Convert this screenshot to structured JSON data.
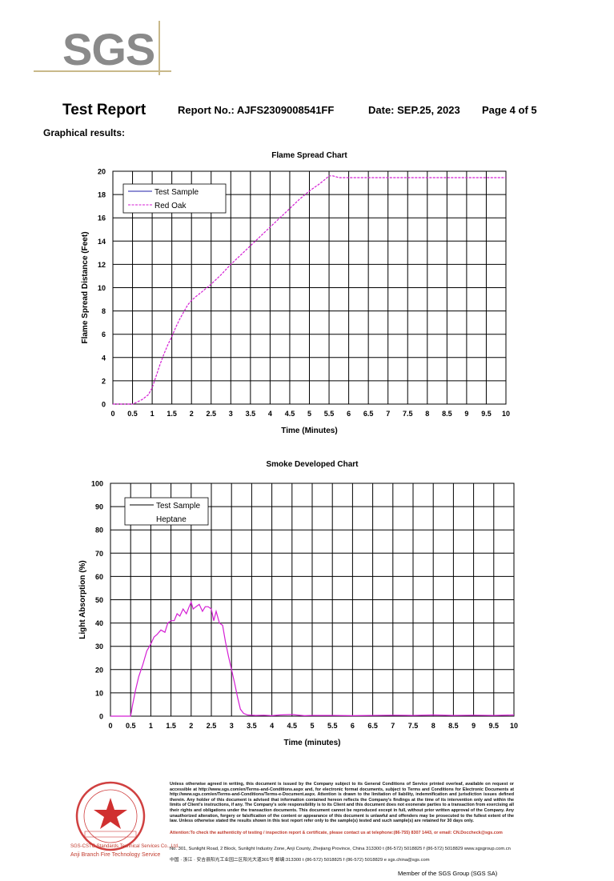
{
  "logo": {
    "text": "SGS"
  },
  "header": {
    "title": "Test Report",
    "report_no": "Report No.: AJFS2309008541FF",
    "date": "Date: SEP.25, 2023",
    "page": "Page 4 of 5"
  },
  "section_heading": "Graphical results:",
  "chart_data": [
    {
      "type": "line",
      "title": "Flame Spread Chart",
      "xlabel": "Time (Minutes)",
      "ylabel": "Flame Spread Distance (Feet)",
      "xlim": [
        0,
        10
      ],
      "ylim": [
        0,
        20
      ],
      "x_ticks": [
        "0",
        "0.5",
        "1",
        "1.5",
        "2",
        "2.5",
        "3",
        "3.5",
        "4",
        "4.5",
        "5",
        "5.5",
        "6",
        "6.5",
        "7",
        "7.5",
        "8",
        "8.5",
        "9",
        "9.5",
        "10"
      ],
      "y_ticks": [
        "0",
        "2",
        "4",
        "6",
        "8",
        "10",
        "12",
        "14",
        "16",
        "18",
        "20"
      ],
      "grid": true,
      "legend_position": "top-left",
      "legend": [
        "Test Sample",
        "Red Oak"
      ],
      "series": [
        {
          "name": "Test Sample",
          "color": "#1f1fa8",
          "style": "solid",
          "x": [],
          "y": []
        },
        {
          "name": "Red Oak",
          "color": "#d41ed4",
          "style": "dashed",
          "x": [
            0,
            0.5,
            0.6,
            0.75,
            0.9,
            1.0,
            1.1,
            1.2,
            1.3,
            1.4,
            1.5,
            1.6,
            1.7,
            1.8,
            1.9,
            2.0,
            2.1,
            2.25,
            2.5,
            2.75,
            3.0,
            3.25,
            3.5,
            3.75,
            4.0,
            4.25,
            4.5,
            4.75,
            5.0,
            5.25,
            5.4,
            5.5,
            5.6,
            5.75,
            6.0,
            7.0,
            8.0,
            9.0,
            10.0
          ],
          "y": [
            0,
            0,
            0.15,
            0.4,
            0.8,
            1.4,
            2.4,
            3.4,
            4.3,
            5.1,
            5.8,
            6.6,
            7.3,
            7.9,
            8.5,
            8.9,
            9.2,
            9.6,
            10.3,
            11.1,
            12.0,
            12.8,
            13.6,
            14.4,
            15.2,
            16.0,
            16.8,
            17.6,
            18.3,
            18.9,
            19.3,
            19.6,
            19.6,
            19.45,
            19.45,
            19.45,
            19.45,
            19.45,
            19.45
          ]
        }
      ]
    },
    {
      "type": "line",
      "title": "Smoke Developed Chart",
      "xlabel": "Time (minutes)",
      "ylabel": "Light Absorption (%)",
      "xlim": [
        0,
        10
      ],
      "ylim": [
        0,
        100
      ],
      "x_ticks": [
        "0",
        "0.5",
        "1",
        "1.5",
        "2",
        "2.5",
        "3",
        "3.5",
        "4",
        "4.5",
        "5",
        "5.5",
        "6",
        "6.5",
        "7",
        "7.5",
        "8",
        "8.5",
        "9",
        "9.5",
        "10"
      ],
      "y_ticks": [
        "0",
        "10",
        "20",
        "30",
        "40",
        "50",
        "60",
        "70",
        "80",
        "90",
        "100"
      ],
      "grid": true,
      "legend_position": "top-left",
      "legend": [
        "Test Sample",
        "Heptane"
      ],
      "series": [
        {
          "name": "Test Sample",
          "color": "#000000",
          "style": "solid",
          "x": [],
          "y": []
        },
        {
          "name": "Heptane",
          "color": "#d41ed4",
          "style": "solid",
          "x": [
            0,
            0.5,
            0.55,
            0.62,
            0.7,
            0.8,
            0.9,
            1.0,
            1.08,
            1.15,
            1.25,
            1.35,
            1.42,
            1.5,
            1.58,
            1.65,
            1.72,
            1.8,
            1.88,
            1.95,
            2.0,
            2.05,
            2.12,
            2.2,
            2.28,
            2.35,
            2.42,
            2.5,
            2.56,
            2.62,
            2.7,
            2.78,
            2.85,
            2.92,
            3.0,
            3.08,
            3.15,
            3.22,
            3.3,
            3.4,
            3.6,
            3.8,
            4.0,
            4.2,
            4.5,
            4.8,
            5.0,
            5.5,
            6.0,
            6.5,
            7.0,
            7.5,
            8.0,
            8.5,
            9.0,
            9.5,
            10.0
          ],
          "y": [
            0,
            0,
            5,
            11,
            17,
            22,
            28,
            31,
            34,
            35,
            37,
            36,
            40,
            41,
            41,
            44,
            43,
            46,
            44,
            47,
            49,
            46,
            47,
            48,
            45,
            47,
            47,
            46,
            41,
            45,
            40,
            39,
            32,
            26,
            20,
            14,
            8,
            3,
            1.2,
            0.5,
            0.3,
            0.4,
            0.2,
            0.5,
            0.7,
            0.2,
            0.3,
            0.3,
            0.2,
            0.3,
            0.4,
            0.3,
            0.5,
            0.3,
            0.4,
            0.3,
            0.5
          ]
        }
      ]
    }
  ],
  "footer": {
    "seal_line1": "SGS-CSTC Standards Technical Services Co., Ltd.",
    "seal_line2": "Anji Branch Fire Technology Service",
    "legal_text": "Unless otherwise agreed in writing, this document is issued by the Company subject to its General Conditions of Service printed overleaf, available on request or accessible at http://www.sgs.com/en/Terms-and-Conditions.aspx and, for electronic format documents, subject to Terms and Conditions for Electronic Documents at http://www.sgs.com/en/Terms-and-Conditions/Terms-e-Document.aspx. Attention is drawn to the limitation of liability, indemnification and jurisdiction issues defined therein. Any holder of this document is advised that information contained hereon reflects the Company's findings at the time of its intervention only and within the limits of Client's instructions, if any. The Company's sole responsibility is to its Client and this document does not exonerate parties to a transaction from exercising all their rights and obligations under the transaction documents. This document cannot be reproduced except in full, without prior written approval of the Company. Any unauthorized alteration, forgery or falsification of the content or appearance of this document is unlawful and offenders may be prosecuted to the fullest extent of the law. Unless otherwise stated the results shown in this test report refer only to the sample(s) tested and such sample(s) are retained for 30 days only.",
    "attention_text": "Attention:To check the authenticity of testing / inspection report & certificate, please contact us at telephone:(86-755) 8307 1443, or email: CN.Doccheck@sgs.com",
    "address_en": "No. 301, Sunlight Road, 2 Block, Sunlight Industry Zone, Anji County, Zhejiang Province, China 313300   t (86-572) 5018825   f (86-572) 5018829   www.sgsgroup.com.cn",
    "address_cn": "中国 · 浙江 · 安吉县阳光工业园二区阳光大道301号        邮编:313300   t (86-572) 5018825   f (86-572) 5018829   e sgs.china@sgs.com",
    "member": "Member of the SGS Group (SGS SA)",
    "brand_color": "#c0392b"
  }
}
